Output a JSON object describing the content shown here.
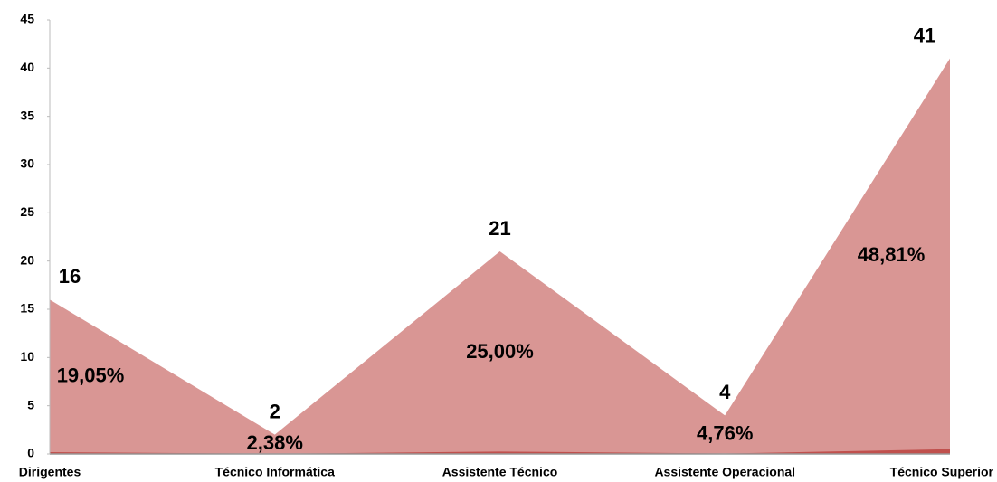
{
  "chart_data": {
    "type": "area",
    "categories": [
      "Dirigentes",
      "Técnico Informática",
      "Assistente Técnico",
      "Assistente Operacional",
      "Técnico Superior"
    ],
    "series": [
      {
        "color": "#d99694",
        "values": [
          16,
          2,
          21,
          4,
          41
        ]
      },
      {
        "color": "#c0504d",
        "values": [
          0.1905,
          0.0238,
          0.25,
          0.0476,
          0.4881
        ],
        "value_labels": [
          "19,05%",
          "2,38%",
          "25,00%",
          "4,76%",
          "48,81%"
        ]
      }
    ],
    "ylim": [
      0,
      45
    ],
    "yticks": [
      0,
      5,
      10,
      15,
      20,
      25,
      30,
      35,
      40,
      45
    ]
  }
}
